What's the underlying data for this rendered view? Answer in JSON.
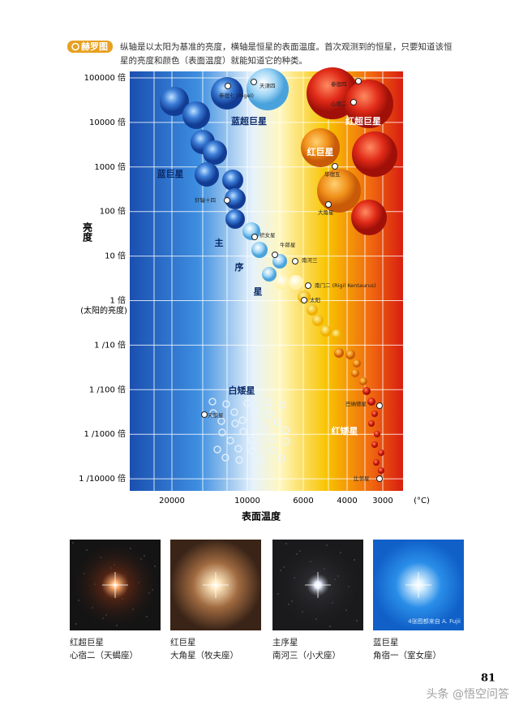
{
  "header": {
    "badge": "赫罗图",
    "text_lines": [
      "纵轴是以太阳为基准的亮度，横轴是恒星的表面温度。首次观测到的恒星，只要知道该恒",
      "星的亮度和颜色（表面温度）就能知道它的种类。"
    ]
  },
  "diagram": {
    "y_axis_title": "亮度",
    "y_labels": [
      "100000 倍",
      "10000 倍",
      "1000 倍",
      "100 倍",
      "10 倍",
      "1 倍",
      "1 /10 倍",
      "1 /100 倍",
      "1 /1000 倍",
      "1 /10000 倍"
    ],
    "sun_note": "(太阳的亮度)",
    "x_labels": [
      "20000",
      "10000",
      "6000",
      "4000",
      "3000"
    ],
    "x_unit": "(°C)",
    "x_axis_title": "表面温度",
    "regions": [
      "蓝超巨星",
      "红超巨星",
      "红巨星",
      "蓝巨星",
      "主",
      "序",
      "星",
      "白矮星",
      "红矮星"
    ],
    "star_names": [
      "天津四",
      "参宿七 (Rigel)",
      "参宿四",
      "心宿二",
      "毕宿五",
      "大角星",
      "轩辕十四",
      "织女星",
      "牛郎星",
      "南河三",
      "南门二 (Rigil Kentaurus)",
      "太阳",
      "天狼星",
      "巴纳德星",
      "比邻星"
    ]
  },
  "photos": [
    {
      "kind": "红超巨星",
      "name": "心宿二（天蝎座）"
    },
    {
      "kind": "红巨星",
      "name": "大角星（牧夫座）"
    },
    {
      "kind": "主序星",
      "name": "南河三（小犬座）"
    },
    {
      "kind": "蓝巨星",
      "name": "角宿一（室女座）"
    }
  ],
  "credit": "4张图都来自 A. Fujii",
  "page_number": "81",
  "watermark": "头条 @悟空问答"
}
